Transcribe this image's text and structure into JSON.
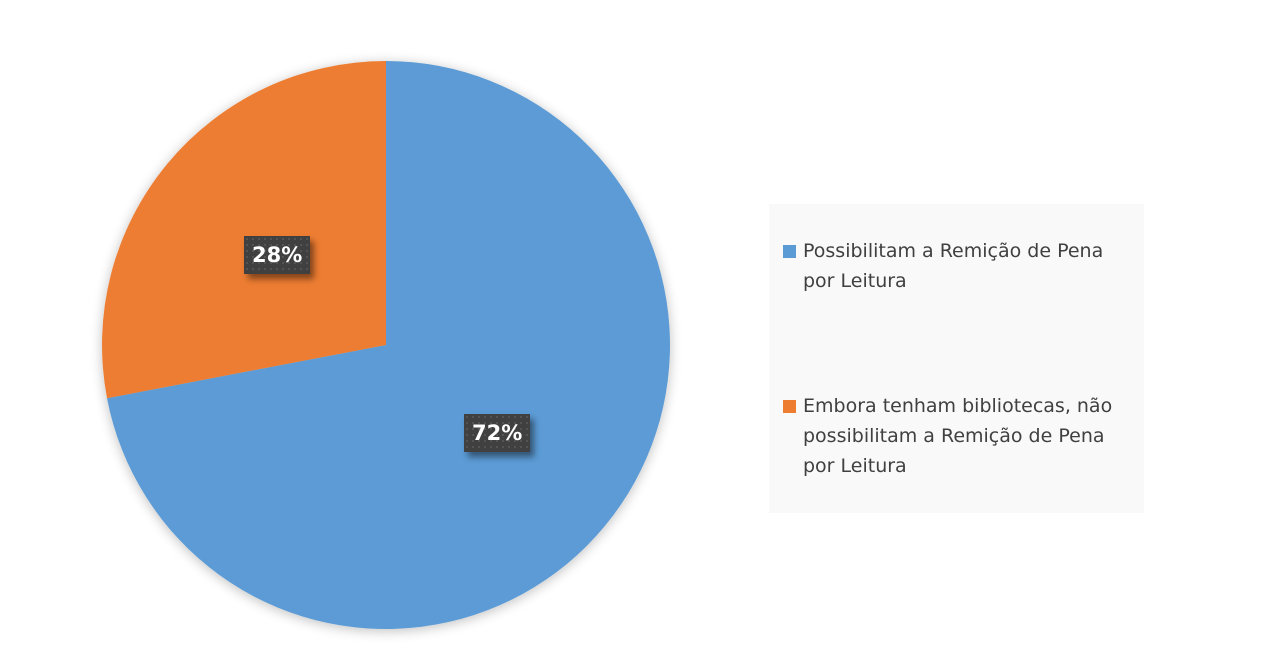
{
  "chart_data": {
    "type": "pie",
    "title": "",
    "slices": [
      {
        "name": "Possibilitam a Remição de Pena por Leitura",
        "value": 72,
        "label": "72%",
        "color": "#5B9BD5"
      },
      {
        "name": "Embora tenham bibliotecas, não possibilitam a Remição de Pena por Leitura",
        "value": 28,
        "label": "28%",
        "color": "#ED7D31"
      }
    ],
    "start_angle": "12 o'clock, clockwise",
    "legend_position": "right"
  }
}
